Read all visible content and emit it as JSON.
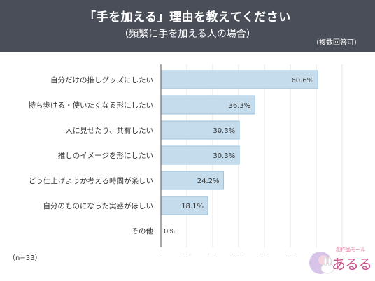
{
  "header": {
    "title": "「手を加える」理由を教えてください",
    "subtitle": "（頻繁に手を加える人の場合）",
    "note": "（複数回答可）"
  },
  "footnote": "（n=33）",
  "logo": {
    "small_text": "創作品モール",
    "main_text": "あるる"
  },
  "colors": {
    "header_bg": "#4a4e59",
    "bar_fill": "#c5dcec",
    "bar_stroke": "#9fc2dc",
    "grid": "#e6e6e6"
  },
  "chart_data": {
    "type": "bar",
    "orientation": "horizontal",
    "categories": [
      "自分だけの推しグッズにしたい",
      "持ち歩ける・使いたくなる形にしたい",
      "人に見せたり、共有したい",
      "推しのイメージを形にしたい",
      "どう仕上げようか考える時間が楽しい",
      "自分のものになった実感がほしい",
      "その他"
    ],
    "values": [
      60.6,
      36.3,
      30.3,
      30.3,
      24.2,
      18.1,
      0
    ],
    "value_labels": [
      "60.6%",
      "36.3%",
      "30.3%",
      "30.3%",
      "24.2%",
      "18.1%",
      "0%"
    ],
    "xlim": [
      0,
      70
    ],
    "xticks": [
      0,
      10,
      20,
      30,
      40,
      50,
      60,
      70
    ],
    "unit_label": "(%)",
    "grid": true
  }
}
